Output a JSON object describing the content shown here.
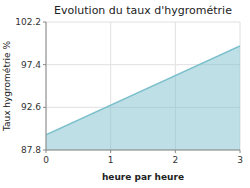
{
  "chart_data": {
    "type": "area",
    "title": "Evolution du taux d'hygrométrie",
    "xlabel": "heure par heure",
    "ylabel": "Taux hygrométrie %",
    "x": [
      0,
      3
    ],
    "values": [
      89.5,
      99.5
    ],
    "color": "#7bbfcc",
    "xlim": [
      0,
      3
    ],
    "ylim": [
      87.8,
      102.2
    ],
    "xticks": [
      0,
      1,
      2,
      3
    ],
    "yticks": [
      87.8,
      92.6,
      97.4,
      102.2
    ],
    "grid": true
  }
}
